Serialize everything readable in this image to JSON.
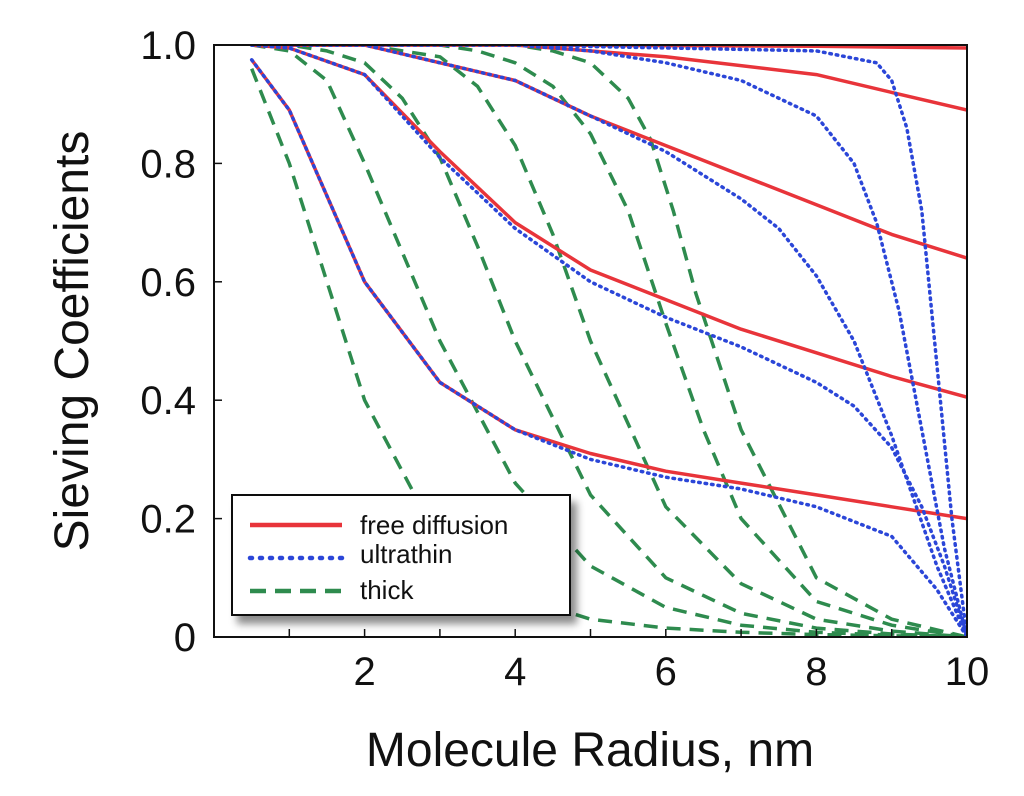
{
  "chart_data": {
    "type": "line",
    "title": "",
    "xlabel": "Molecule Radius, nm",
    "ylabel": "Sieving Coefficients",
    "xlim": [
      0,
      10
    ],
    "ylim": [
      0,
      1
    ],
    "xticks": [
      2,
      4,
      6,
      8,
      10
    ],
    "yticks": [
      0,
      0.2,
      0.4,
      0.6,
      0.8,
      1.0
    ],
    "xtick_labels": [
      "2",
      "4",
      "6",
      "8",
      "10"
    ],
    "ytick_labels": [
      "0",
      "0.2",
      "0.4",
      "0.6",
      "0.8",
      "1.0"
    ],
    "grid": false,
    "legend": {
      "position": "lower-left",
      "entries": [
        {
          "label": "free diffusion",
          "style": "solid",
          "color": "#e8343a"
        },
        {
          "label": "ultrathin",
          "style": "dotted",
          "color": "#2b46d8"
        },
        {
          "label": "thick",
          "style": "dashed",
          "color": "#2e8b4e"
        }
      ]
    },
    "series": [
      {
        "group": "free diffusion",
        "x": [
          0.5,
          1,
          2,
          3,
          4,
          5,
          6,
          7,
          8,
          9,
          10
        ],
        "y": [
          0.975,
          0.89,
          0.6,
          0.43,
          0.35,
          0.31,
          0.28,
          0.26,
          0.24,
          0.22,
          0.2
        ]
      },
      {
        "group": "free diffusion",
        "x": [
          0.5,
          1,
          2,
          3,
          4,
          5,
          6,
          7,
          8,
          9,
          10
        ],
        "y": [
          1.0,
          0.995,
          0.95,
          0.82,
          0.7,
          0.62,
          0.57,
          0.52,
          0.48,
          0.44,
          0.405
        ]
      },
      {
        "group": "free diffusion",
        "x": [
          0.5,
          1,
          2,
          3,
          4,
          5,
          6,
          7,
          8,
          9,
          10
        ],
        "y": [
          1.0,
          1.0,
          1.0,
          0.97,
          0.94,
          0.88,
          0.83,
          0.78,
          0.73,
          0.68,
          0.64
        ]
      },
      {
        "group": "free diffusion",
        "x": [
          0.5,
          2,
          4,
          6,
          8,
          9,
          10
        ],
        "y": [
          1.0,
          1.0,
          1.0,
          0.98,
          0.95,
          0.92,
          0.89
        ]
      },
      {
        "group": "free diffusion",
        "x": [
          0.5,
          4,
          8,
          10
        ],
        "y": [
          1.0,
          1.0,
          0.998,
          0.995
        ]
      },
      {
        "group": "ultrathin",
        "x": [
          0.5,
          1,
          2,
          3,
          4,
          5,
          6,
          7,
          8,
          9,
          9.6,
          10
        ],
        "y": [
          0.975,
          0.89,
          0.6,
          0.43,
          0.35,
          0.3,
          0.27,
          0.25,
          0.22,
          0.17,
          0.08,
          0.0
        ]
      },
      {
        "group": "ultrathin",
        "x": [
          0.5,
          1,
          2,
          3,
          4,
          5,
          6,
          7,
          8,
          8.5,
          9,
          9.4,
          9.7,
          10
        ],
        "y": [
          1.0,
          0.995,
          0.95,
          0.81,
          0.69,
          0.6,
          0.54,
          0.49,
          0.43,
          0.39,
          0.32,
          0.22,
          0.12,
          0.0
        ]
      },
      {
        "group": "ultrathin",
        "x": [
          0.5,
          1,
          2,
          3,
          4,
          5,
          6,
          7,
          7.5,
          8,
          8.5,
          9,
          9.3,
          9.6,
          10
        ],
        "y": [
          1.0,
          1.0,
          1.0,
          0.97,
          0.94,
          0.88,
          0.82,
          0.74,
          0.69,
          0.61,
          0.5,
          0.34,
          0.23,
          0.12,
          0.0
        ]
      },
      {
        "group": "ultrathin",
        "x": [
          0.5,
          2,
          4,
          5,
          6,
          7,
          8,
          8.5,
          8.8,
          9.1,
          9.4,
          9.7,
          10
        ],
        "y": [
          1.0,
          1.0,
          1.0,
          0.99,
          0.97,
          0.94,
          0.88,
          0.8,
          0.7,
          0.55,
          0.35,
          0.15,
          0.0
        ]
      },
      {
        "group": "ultrathin",
        "x": [
          0.5,
          4,
          8,
          8.8,
          9.0,
          9.2,
          9.4,
          9.6,
          9.8,
          10
        ],
        "y": [
          1.0,
          1.0,
          0.99,
          0.97,
          0.94,
          0.86,
          0.72,
          0.46,
          0.2,
          0.0
        ]
      },
      {
        "group": "thick",
        "x": [
          0.5,
          1,
          2,
          3,
          4,
          5,
          6,
          7,
          8,
          9,
          10
        ],
        "y": [
          0.96,
          0.8,
          0.4,
          0.16,
          0.07,
          0.03,
          0.015,
          0.008,
          0.004,
          0.002,
          0.0
        ]
      },
      {
        "group": "thick",
        "x": [
          0.5,
          1,
          1.5,
          2,
          3,
          4,
          5,
          6,
          7,
          8,
          9,
          10
        ],
        "y": [
          1.0,
          0.99,
          0.94,
          0.8,
          0.5,
          0.26,
          0.12,
          0.05,
          0.02,
          0.008,
          0.003,
          0.0
        ]
      },
      {
        "group": "thick",
        "x": [
          0.5,
          1,
          1.5,
          2,
          2.5,
          3,
          3.5,
          4,
          5,
          6,
          7,
          8,
          9,
          10
        ],
        "y": [
          1.0,
          1.0,
          0.99,
          0.97,
          0.91,
          0.81,
          0.66,
          0.5,
          0.24,
          0.1,
          0.04,
          0.015,
          0.005,
          0.0
        ]
      },
      {
        "group": "thick",
        "x": [
          0.5,
          1.5,
          2,
          2.5,
          3,
          3.5,
          4,
          4.5,
          5,
          6,
          7,
          8,
          9,
          10
        ],
        "y": [
          1.0,
          1.0,
          1.0,
          0.99,
          0.98,
          0.93,
          0.83,
          0.68,
          0.5,
          0.22,
          0.09,
          0.03,
          0.01,
          0.0
        ]
      },
      {
        "group": "thick",
        "x": [
          0.5,
          2,
          3,
          3.5,
          4,
          4.5,
          5,
          5.5,
          6,
          6.5,
          7,
          8,
          9,
          10
        ],
        "y": [
          1.0,
          1.0,
          1.0,
          0.99,
          0.97,
          0.93,
          0.85,
          0.72,
          0.53,
          0.35,
          0.2,
          0.06,
          0.02,
          0.0
        ]
      },
      {
        "group": "thick",
        "x": [
          0.5,
          3,
          4,
          4.5,
          5,
          5.5,
          5.8,
          6.1,
          6.4,
          7,
          8,
          9,
          10
        ],
        "y": [
          1.0,
          1.0,
          1.0,
          0.99,
          0.97,
          0.91,
          0.84,
          0.72,
          0.58,
          0.35,
          0.1,
          0.03,
          0.0
        ]
      }
    ]
  }
}
